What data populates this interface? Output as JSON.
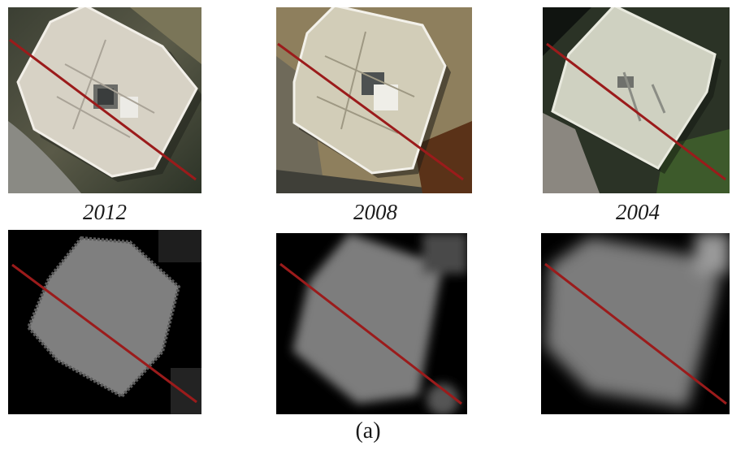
{
  "figure": {
    "years": [
      "2012",
      "2008",
      "2004"
    ],
    "caption": "(a)"
  },
  "colors": {
    "profile_line": "#9b1b1b",
    "roof": "#d6d1c4",
    "dsm_building": "#7d7d7d",
    "dsm_ground": "#000000"
  },
  "panels": [
    {
      "row": "aerial",
      "year": "2012"
    },
    {
      "row": "aerial",
      "year": "2008"
    },
    {
      "row": "aerial",
      "year": "2004"
    },
    {
      "row": "dsm",
      "year": "2012"
    },
    {
      "row": "dsm",
      "year": "2008"
    },
    {
      "row": "dsm",
      "year": "2004"
    }
  ]
}
